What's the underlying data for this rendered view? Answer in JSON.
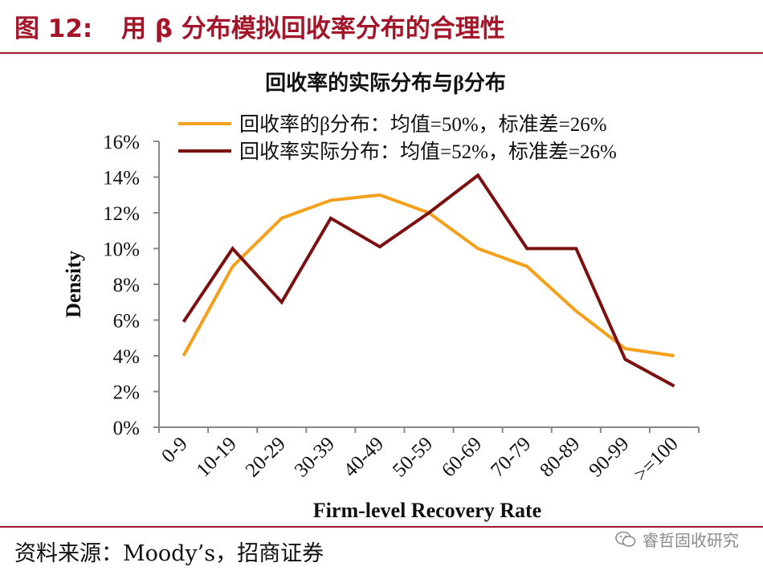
{
  "figure": {
    "label": "图 12:",
    "title": "用 β 分布模拟回收率分布的合理性"
  },
  "footer": {
    "source": "资料来源：Moody’s，招商证券",
    "watermark": "睿哲固收研究"
  },
  "chart_data": {
    "type": "line",
    "title": "回收率的实际分布与β分布",
    "xlabel": "Firm-level Recovery Rate",
    "ylabel": "Density",
    "categories": [
      "0-9",
      "10-19",
      "20-29",
      "30-39",
      "40-49",
      "50-59",
      "60-69",
      "70-79",
      "80-89",
      "90-99",
      ">=100"
    ],
    "ylim": [
      0,
      16
    ],
    "yticks": [
      "0%",
      "2%",
      "4%",
      "6%",
      "8%",
      "10%",
      "12%",
      "14%",
      "16%"
    ],
    "grid": false,
    "legend_position": "top",
    "series": [
      {
        "name": "回收率的β分布：均值=50%，标准差=26%",
        "color": "#f5a01a",
        "values": [
          4.0,
          9.0,
          11.7,
          12.7,
          13.0,
          12.0,
          10.0,
          9.0,
          6.5,
          4.4,
          4.0
        ]
      },
      {
        "name": "回收率实际分布：均值=52%，标准差=26%",
        "color": "#7b1010",
        "values": [
          5.9,
          10.0,
          7.0,
          11.7,
          10.1,
          12.0,
          14.1,
          10.0,
          10.0,
          3.8,
          2.3
        ]
      }
    ]
  }
}
